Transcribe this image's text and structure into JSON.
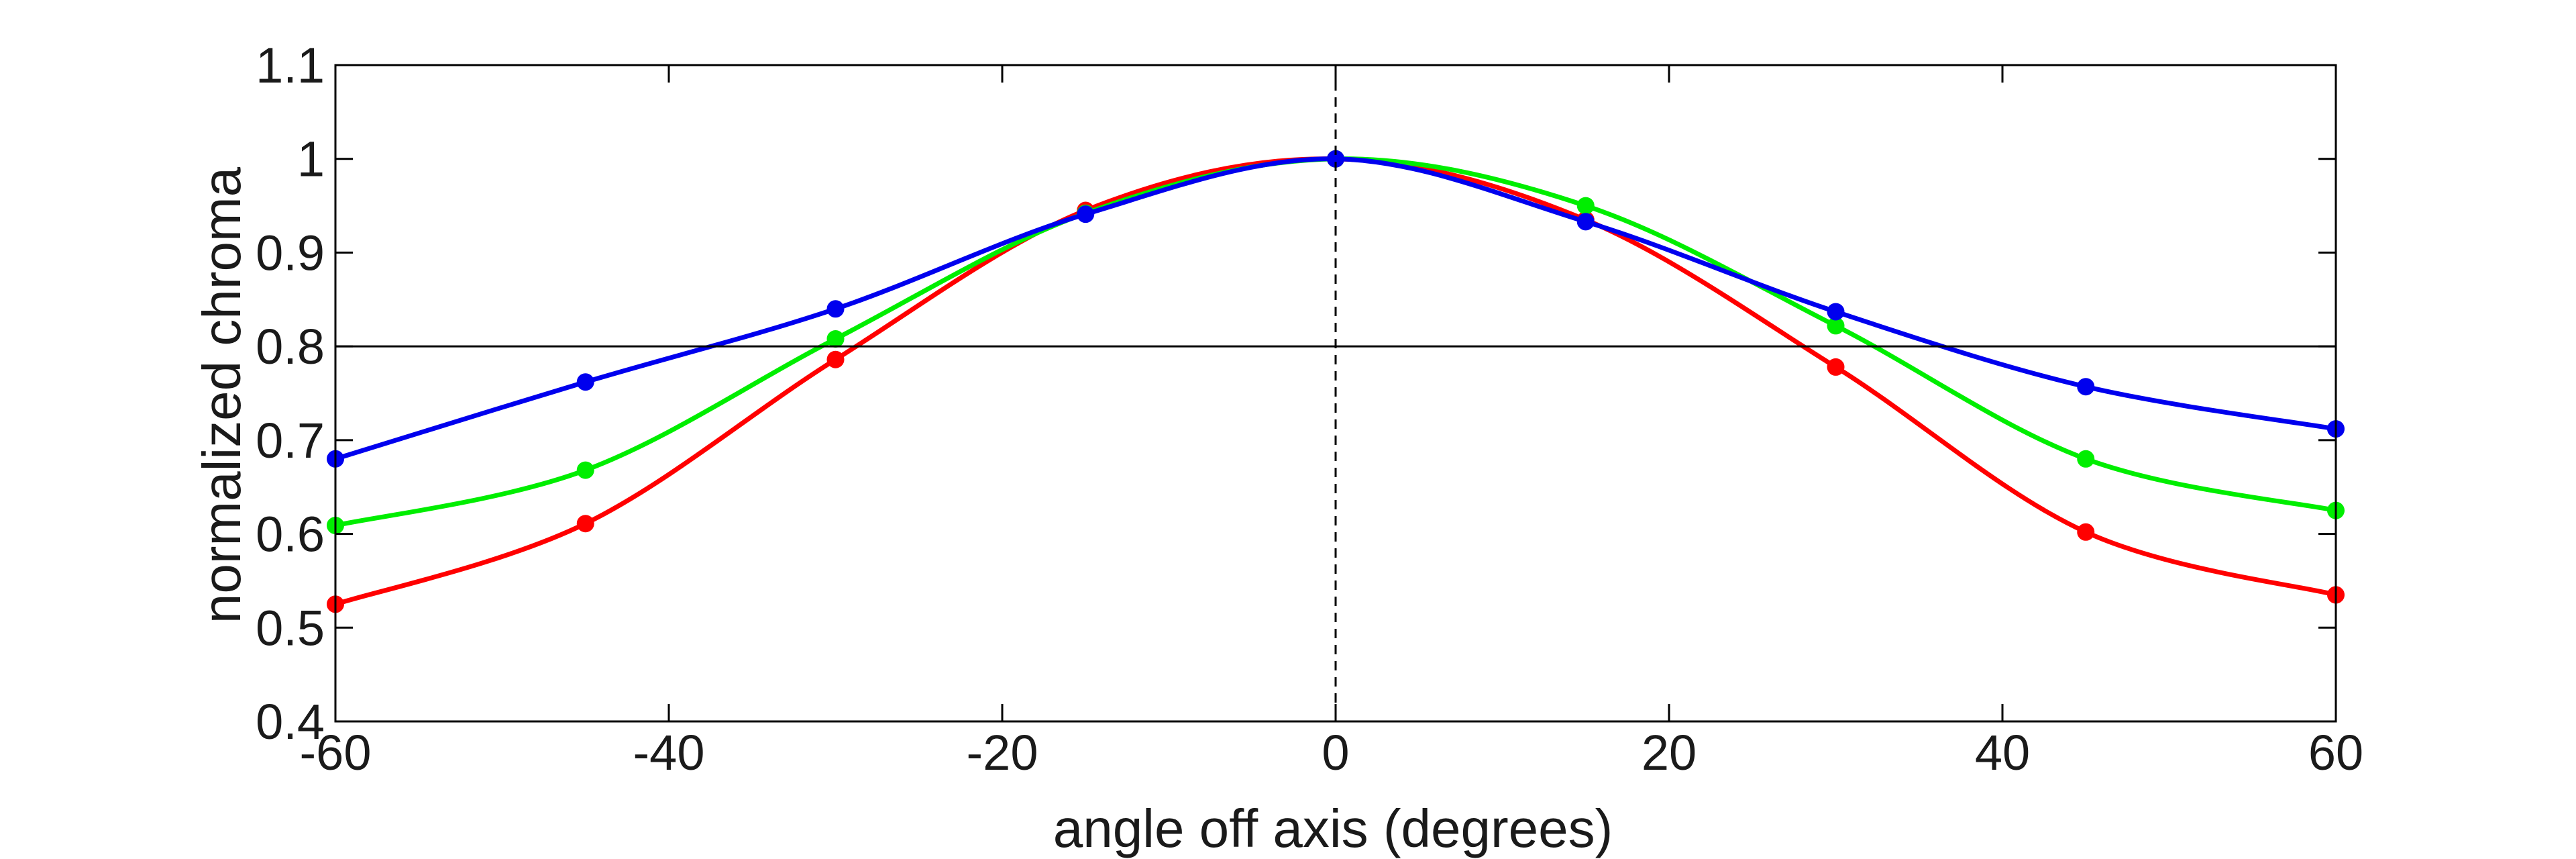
{
  "chart_data": {
    "type": "line",
    "title": "",
    "xlabel": "angle off axis (degrees)",
    "ylabel": "normalized chroma",
    "xlim": [
      -60,
      60
    ],
    "ylim": [
      0.4,
      1.1
    ],
    "xticks": [
      -60,
      -40,
      -20,
      0,
      20,
      40,
      60
    ],
    "xtick_labels": [
      "-60",
      "-40",
      "-20",
      "0",
      "20",
      "40",
      "60"
    ],
    "yticks": [
      0.4,
      0.5,
      0.6,
      0.7,
      0.8,
      0.9,
      1.0,
      1.1
    ],
    "ytick_labels": [
      "0.4",
      "0.5",
      "0.6",
      "0.7",
      "0.8",
      "0.9",
      "1",
      "1.1"
    ],
    "grid": false,
    "legend": "none",
    "reference_line_y": 0.8,
    "reference_line_x": 0,
    "x": [
      -60,
      -45,
      -30,
      -15,
      0,
      15,
      30,
      45,
      60
    ],
    "series": [
      {
        "color": "#ff0000",
        "values": [
          0.525,
          0.611,
          0.786,
          0.945,
          1.0,
          0.935,
          0.778,
          0.602,
          0.535
        ]
      },
      {
        "color": "#00ee00",
        "values": [
          0.609,
          0.668,
          0.808,
          0.942,
          1.0,
          0.95,
          0.822,
          0.68,
          0.625
        ]
      },
      {
        "color": "#0000ee",
        "values": [
          0.68,
          0.762,
          0.84,
          0.941,
          1.0,
          0.933,
          0.837,
          0.757,
          0.712
        ]
      }
    ]
  }
}
